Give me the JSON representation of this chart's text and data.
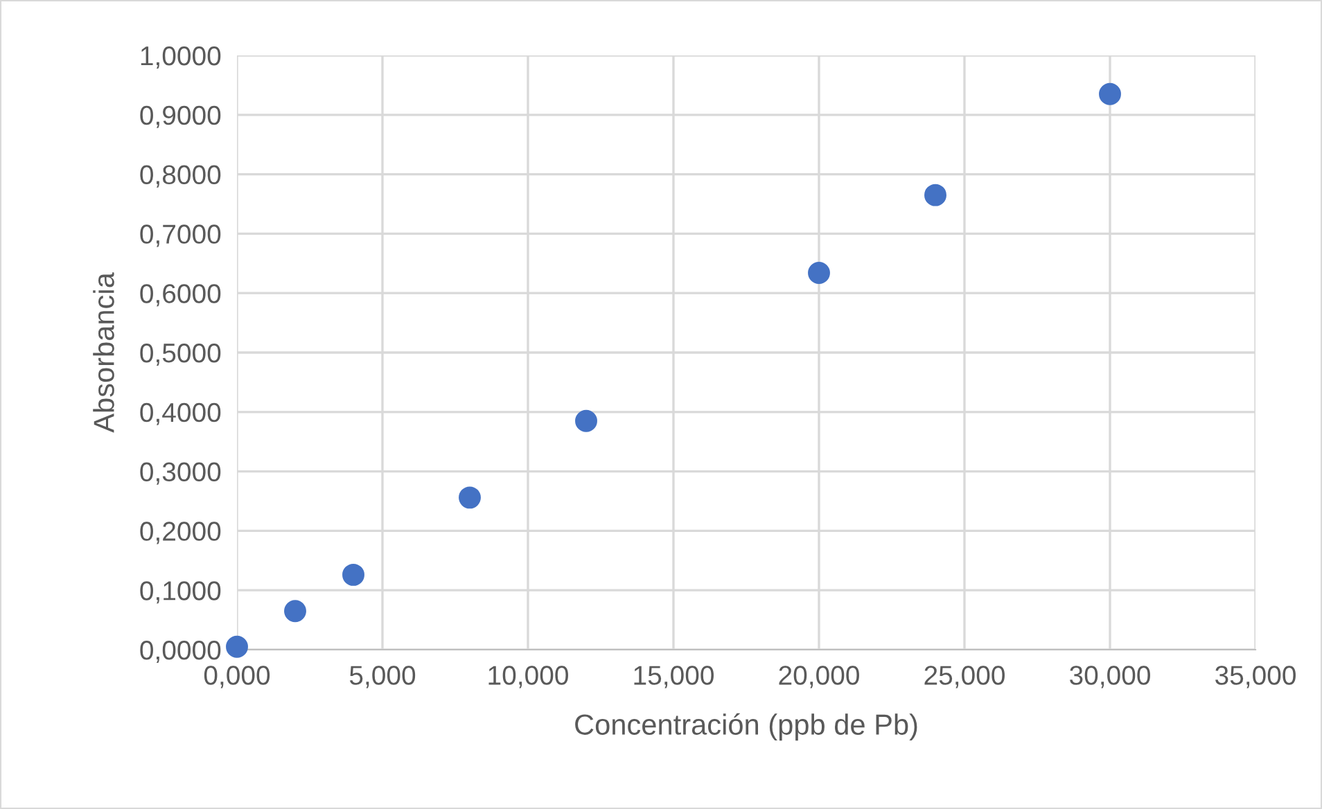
{
  "chart_data": {
    "type": "scatter",
    "xlabel": "Concentración (ppb de Pb)",
    "ylabel": "Absorbancia",
    "x": [
      0,
      2,
      4,
      8,
      12,
      20,
      24,
      30
    ],
    "series": [
      {
        "color": "#4472c4",
        "values": [
          0.005,
          0.065,
          0.126,
          0.256,
          0.385,
          0.634,
          0.765,
          0.935
        ]
      }
    ],
    "xlim": [
      0,
      35
    ],
    "ylim": [
      0,
      1
    ],
    "xticks": [
      {
        "value": 0,
        "label": "0,000"
      },
      {
        "value": 5,
        "label": "5,000"
      },
      {
        "value": 10,
        "label": "10,000"
      },
      {
        "value": 15,
        "label": "15,000"
      },
      {
        "value": 20,
        "label": "20,000"
      },
      {
        "value": 25,
        "label": "25,000"
      },
      {
        "value": 30,
        "label": "30,000"
      },
      {
        "value": 35,
        "label": "35,000"
      }
    ],
    "yticks": [
      {
        "value": 0,
        "label": "0,0000"
      },
      {
        "value": 0.1,
        "label": "0,1000"
      },
      {
        "value": 0.2,
        "label": "0,2000"
      },
      {
        "value": 0.3,
        "label": "0,3000"
      },
      {
        "value": 0.4,
        "label": "0,4000"
      },
      {
        "value": 0.5,
        "label": "0,5000"
      },
      {
        "value": 0.6,
        "label": "0,6000"
      },
      {
        "value": 0.7,
        "label": "0,7000"
      },
      {
        "value": 0.8,
        "label": "0,8000"
      },
      {
        "value": 0.9,
        "label": "0,9000"
      },
      {
        "value": 1,
        "label": "1,0000"
      }
    ],
    "grid": true,
    "marker": "circle"
  }
}
